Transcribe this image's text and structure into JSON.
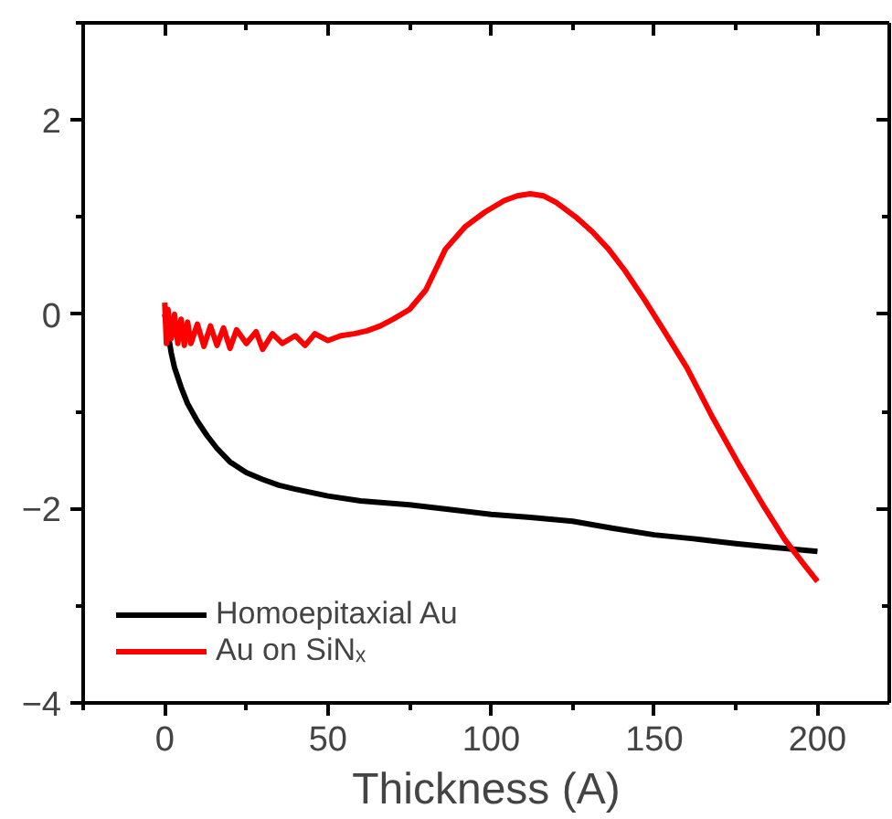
{
  "chart_data": {
    "type": "line",
    "xlabel": "Thickness (A)",
    "xlim": [
      -25,
      222
    ],
    "ylim": [
      -4,
      3
    ],
    "xticks": [
      0,
      50,
      100,
      150,
      200
    ],
    "yticks": [
      -4,
      -2,
      0,
      2
    ],
    "grid": false,
    "legend": "bottom left",
    "marker": "none",
    "line_style": "solid",
    "series": [
      {
        "name": "Homoepitaxial Au",
        "color": "#000000",
        "x": [
          0,
          1,
          2,
          3,
          5,
          7,
          10,
          13,
          16,
          20,
          25,
          30,
          35,
          40,
          50,
          60,
          75,
          90,
          100,
          112,
          125,
          137,
          150,
          162,
          175,
          187,
          200
        ],
        "values": [
          0,
          -0.2,
          -0.4,
          -0.55,
          -0.75,
          -0.92,
          -1.1,
          -1.25,
          -1.38,
          -1.52,
          -1.63,
          -1.7,
          -1.76,
          -1.8,
          -1.87,
          -1.92,
          -1.96,
          -2.02,
          -2.06,
          -2.09,
          -2.13,
          -2.2,
          -2.27,
          -2.31,
          -2.36,
          -2.4,
          -2.44
        ]
      },
      {
        "name": "Au on SiNₓ",
        "color": "#ff0000",
        "x": [
          0,
          0.5,
          1,
          2,
          3,
          4,
          5,
          6,
          7,
          8,
          10,
          12,
          14,
          16,
          18,
          20,
          22,
          25,
          28,
          30,
          33,
          36,
          40,
          43,
          46,
          50,
          54,
          58,
          62,
          66,
          70,
          75,
          80,
          86,
          92,
          98,
          104,
          108,
          112,
          116,
          120,
          126,
          131,
          136,
          141,
          147,
          153,
          160,
          168,
          176,
          184,
          190,
          196,
          200
        ],
        "values": [
          0.12,
          -0.3,
          0.05,
          -0.25,
          0.0,
          -0.3,
          -0.05,
          -0.32,
          -0.08,
          -0.3,
          -0.1,
          -0.33,
          -0.12,
          -0.32,
          -0.14,
          -0.35,
          -0.16,
          -0.3,
          -0.18,
          -0.36,
          -0.2,
          -0.3,
          -0.22,
          -0.32,
          -0.2,
          -0.27,
          -0.22,
          -0.2,
          -0.17,
          -0.12,
          -0.05,
          0.05,
          0.25,
          0.67,
          0.9,
          1.05,
          1.17,
          1.22,
          1.24,
          1.22,
          1.15,
          1.0,
          0.85,
          0.67,
          0.45,
          0.15,
          -0.17,
          -0.55,
          -1.07,
          -1.55,
          -2.0,
          -2.32,
          -2.58,
          -2.75
        ]
      }
    ]
  }
}
